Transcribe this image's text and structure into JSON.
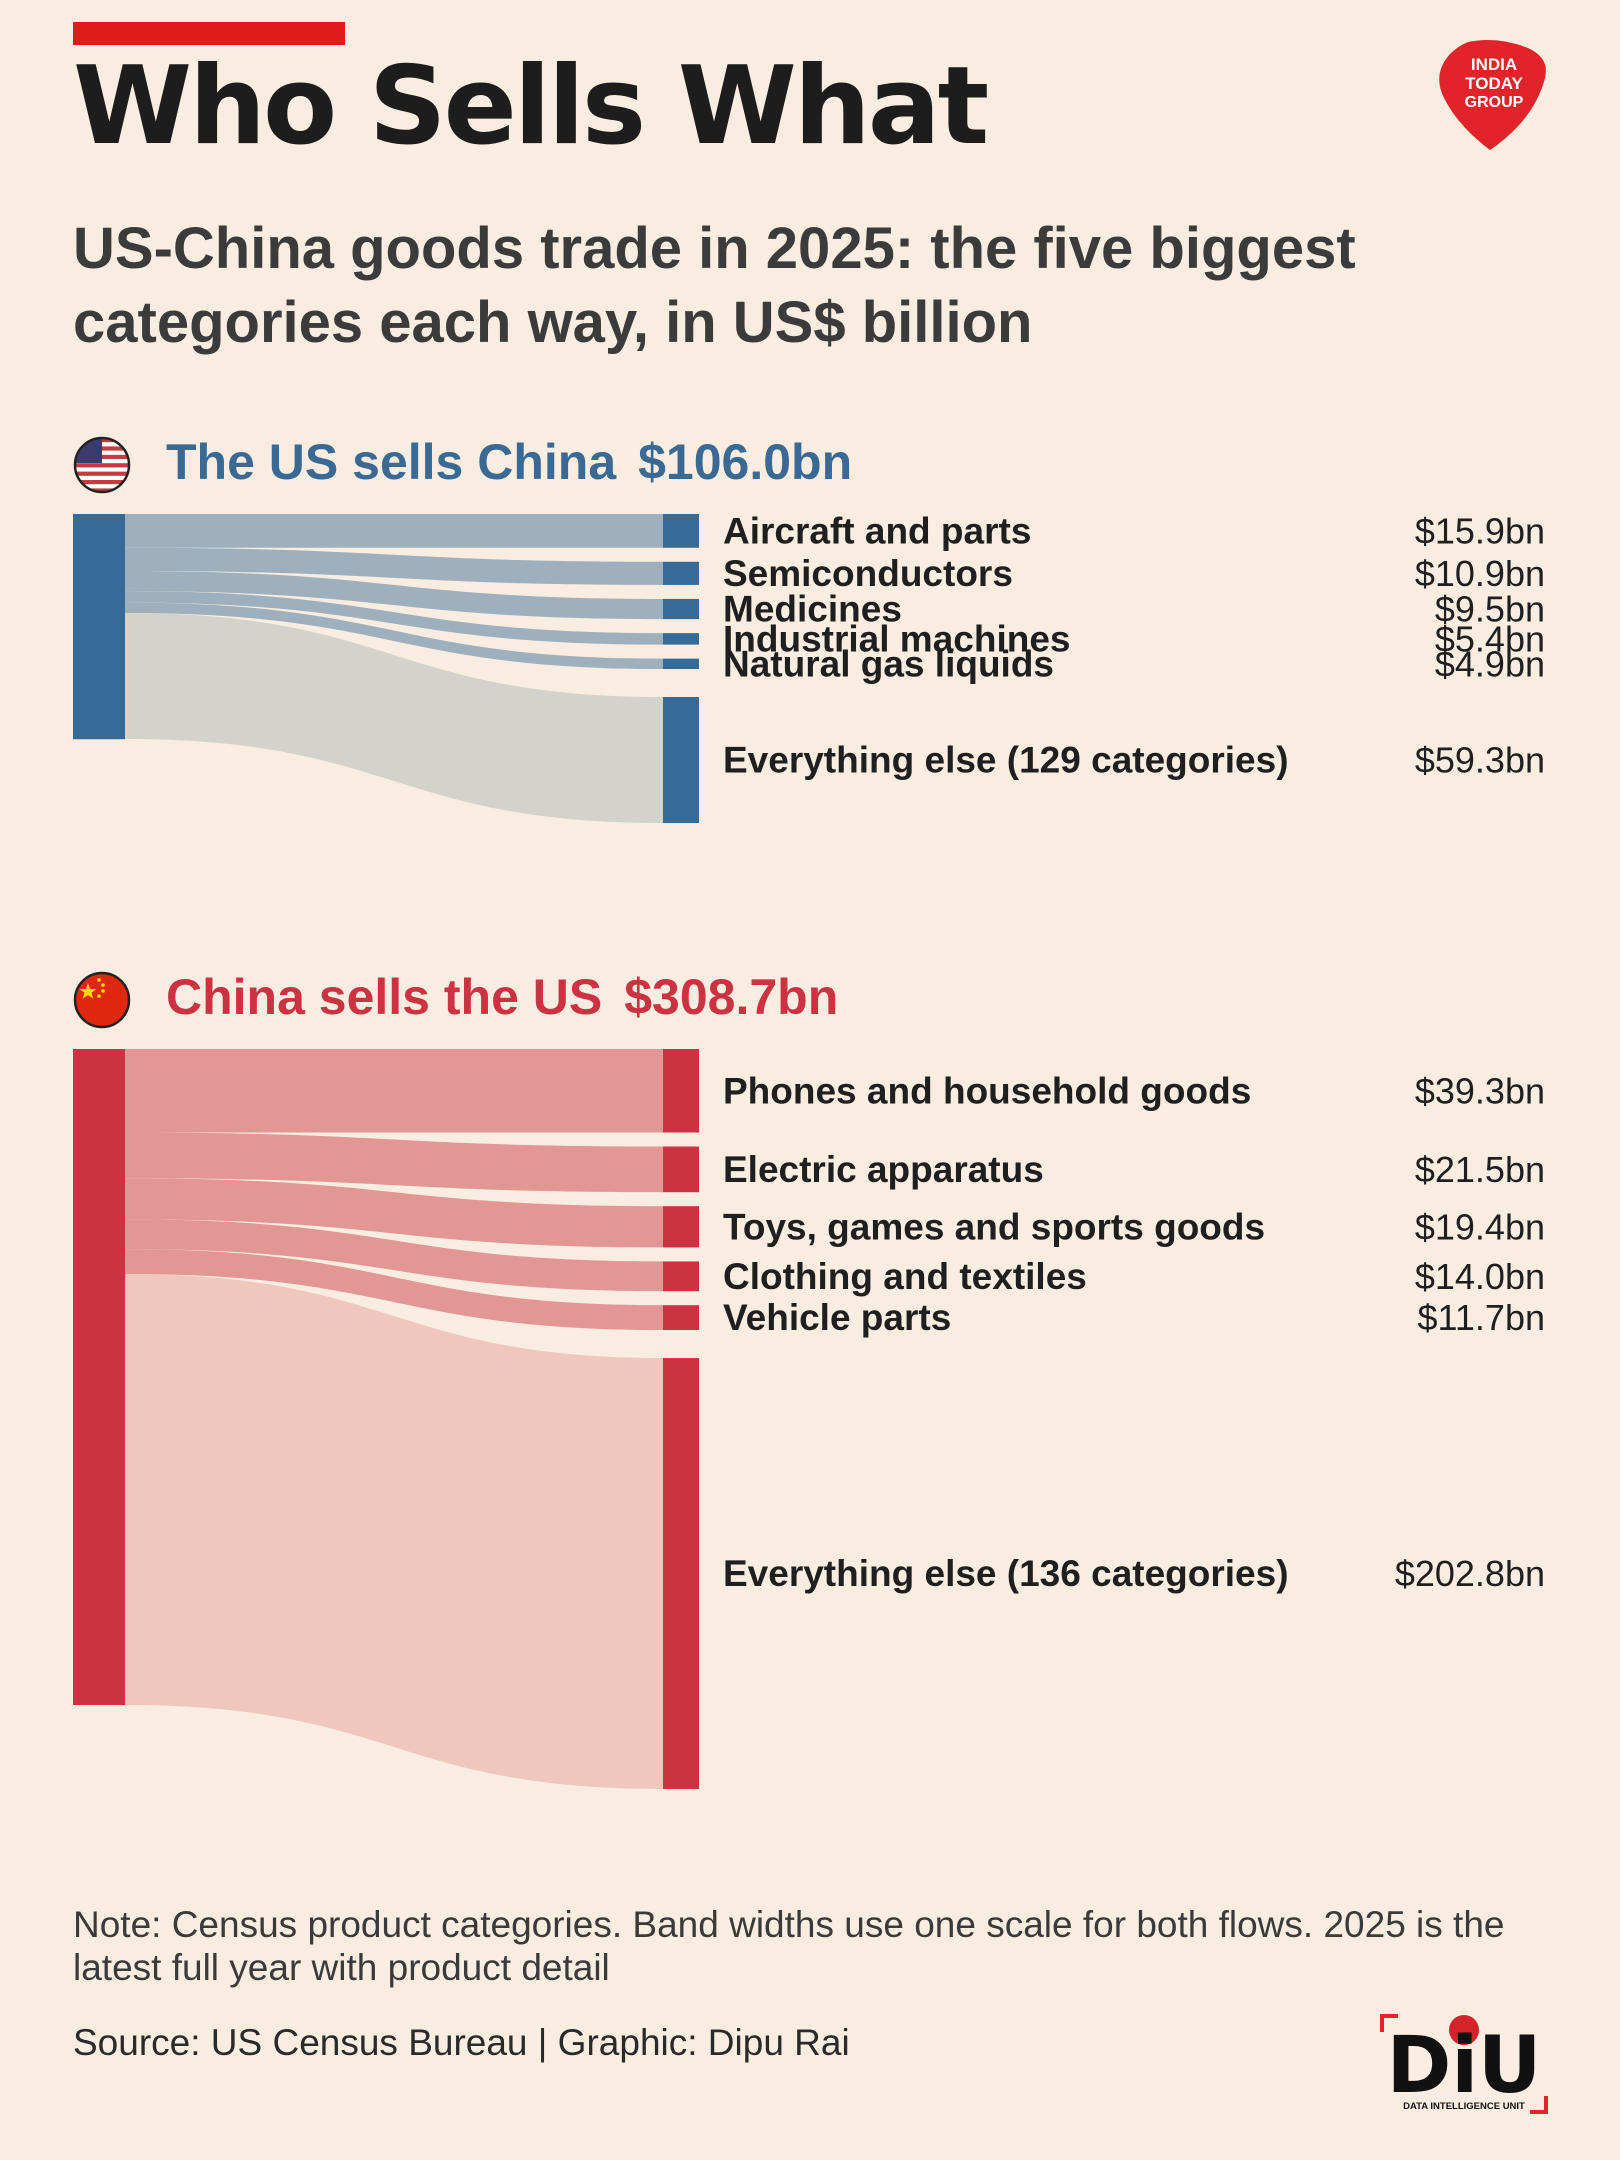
{
  "header": {
    "title": "Who Sells What",
    "subtitle": "US-China goods trade in 2025: the five biggest categories each way, in US$ billion",
    "logo_text": [
      "INDIA",
      "TODAY",
      "GROUP"
    ]
  },
  "sections": {
    "us": {
      "label": "The US sells China",
      "total": "$106.0bn"
    },
    "cn": {
      "label": "China sells the US",
      "total": "$308.7bn"
    }
  },
  "chart_data": [
    {
      "type": "sankey",
      "title": "The US sells China $106.0bn",
      "source": "The US",
      "total": 106.0,
      "unit": "US$ billion",
      "flows": [
        {
          "label": "Aircraft and parts",
          "value": 15.9,
          "value_label": "$15.9bn"
        },
        {
          "label": "Semiconductors",
          "value": 10.9,
          "value_label": "$10.9bn"
        },
        {
          "label": "Medicines",
          "value": 9.5,
          "value_label": "$9.5bn"
        },
        {
          "label": "Industrial machines",
          "value": 5.4,
          "value_label": "$5.4bn"
        },
        {
          "label": "Natural gas liquids",
          "value": 4.9,
          "value_label": "$4.9bn"
        },
        {
          "label": "Everything else (129 categories)",
          "value": 59.3,
          "value_label": "$59.3bn",
          "other": true
        }
      ],
      "colors": {
        "node": "#356b96",
        "top_band": "#9eb0bd",
        "other_band": "#d3d3cc"
      }
    },
    {
      "type": "sankey",
      "title": "China sells the US $308.7bn",
      "source": "China",
      "total": 308.7,
      "unit": "US$ billion",
      "flows": [
        {
          "label": "Phones and household goods",
          "value": 39.3,
          "value_label": "$39.3bn"
        },
        {
          "label": "Electric apparatus",
          "value": 21.5,
          "value_label": "$21.5bn"
        },
        {
          "label": "Toys, games and sports goods",
          "value": 19.4,
          "value_label": "$19.4bn"
        },
        {
          "label": "Clothing and textiles",
          "value": 14.0,
          "value_label": "$14.0bn"
        },
        {
          "label": "Vehicle parts",
          "value": 11.7,
          "value_label": "$11.7bn"
        },
        {
          "label": "Everything else (136 categories)",
          "value": 202.8,
          "value_label": "$202.8bn",
          "other": true
        }
      ],
      "colors": {
        "node": "#cc3342",
        "top_band": "#e29795",
        "other_band": "#efc7bd"
      }
    }
  ],
  "footer": {
    "note": "Note: Census product categories. Band widths use one scale for both flows. 2025 is the latest full year with product detail",
    "source": "Source: US Census Bureau | Graphic: Dipu Rai",
    "diu_text": "DiU",
    "diu_sub": "DATA INTELLIGENCE UNIT"
  }
}
